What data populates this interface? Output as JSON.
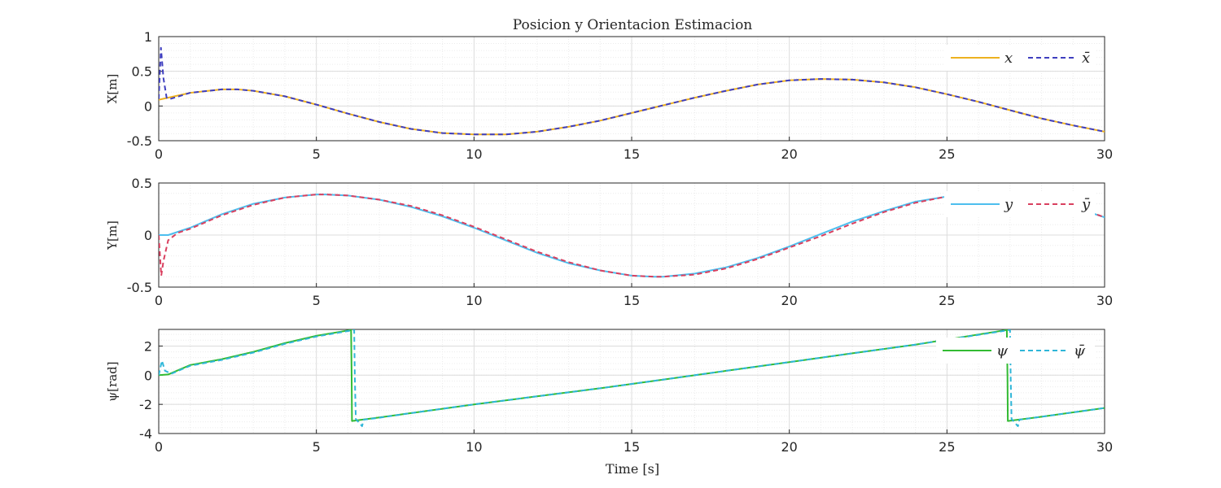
{
  "figure_title": "Posicion y Orientacion Estimacion",
  "x_axis_label": "Time [s]",
  "chart_data": [
    {
      "type": "line",
      "ylabel": "X[m]",
      "xlim": [
        0,
        30
      ],
      "ylim": [
        -0.5,
        1
      ],
      "xticks": [
        "0",
        "5",
        "10",
        "15",
        "20",
        "25",
        "30"
      ],
      "yticks": [
        "1",
        "0.5",
        "0",
        "-0.5"
      ],
      "ytick_values": [
        1,
        0.5,
        0,
        -0.5
      ],
      "grid": true,
      "legend_position": "top-right",
      "series": [
        {
          "name": "x",
          "color": "#EDB120",
          "style": "solid",
          "x": [
            0,
            1,
            2,
            2.5,
            3,
            4,
            5,
            6,
            7,
            8,
            9,
            10,
            10.5,
            11,
            12,
            13,
            14,
            15,
            16,
            17,
            18,
            19,
            20,
            21,
            22,
            23,
            24,
            25,
            26,
            27,
            28,
            29,
            30
          ],
          "y": [
            0.09,
            0.19,
            0.24,
            0.24,
            0.22,
            0.14,
            0.02,
            -0.11,
            -0.23,
            -0.33,
            -0.39,
            -0.41,
            -0.41,
            -0.41,
            -0.37,
            -0.3,
            -0.21,
            -0.1,
            0.01,
            0.12,
            0.22,
            0.31,
            0.37,
            0.39,
            0.38,
            0.34,
            0.27,
            0.17,
            0.06,
            -0.06,
            -0.18,
            -0.28,
            -0.37
          ]
        },
        {
          "name": "x̄",
          "color": "#3F3FBF",
          "style": "dashed",
          "x": [
            0,
            0.07,
            0.15,
            0.25,
            0.35,
            1,
            2,
            2.5,
            3,
            4,
            5,
            6,
            7,
            8,
            9,
            10,
            10.5,
            11,
            12,
            13,
            14,
            15,
            16,
            17,
            18,
            19,
            20,
            21,
            22,
            23,
            24,
            25,
            26,
            27,
            28,
            29,
            30
          ],
          "y": [
            0.1,
            0.84,
            0.4,
            0.12,
            0.1,
            0.19,
            0.24,
            0.24,
            0.22,
            0.14,
            0.02,
            -0.11,
            -0.23,
            -0.33,
            -0.39,
            -0.41,
            -0.41,
            -0.41,
            -0.37,
            -0.3,
            -0.21,
            -0.1,
            0.01,
            0.12,
            0.22,
            0.31,
            0.37,
            0.39,
            0.38,
            0.34,
            0.27,
            0.17,
            0.06,
            -0.06,
            -0.18,
            -0.28,
            -0.37
          ]
        }
      ]
    },
    {
      "type": "line",
      "ylabel": "Y[m]",
      "xlim": [
        0,
        30
      ],
      "ylim": [
        -0.5,
        0.5
      ],
      "xticks": [
        "0",
        "5",
        "10",
        "15",
        "20",
        "25",
        "30"
      ],
      "yticks": [
        "0.5",
        "0",
        "-0.5"
      ],
      "ytick_values": [
        0.5,
        0,
        -0.5
      ],
      "grid": true,
      "legend_position": "top-right",
      "series": [
        {
          "name": "y",
          "color": "#4DBEEE",
          "style": "solid",
          "x": [
            0,
            0.3,
            1,
            2,
            3,
            4,
            5,
            5.3,
            6,
            7,
            8,
            9,
            10,
            11,
            12,
            13,
            14,
            15,
            15.7,
            16,
            17,
            18,
            19,
            20,
            21,
            22,
            23,
            24,
            25,
            26,
            27,
            28,
            29,
            30
          ],
          "y": [
            0.0,
            0.0,
            0.07,
            0.2,
            0.3,
            0.36,
            0.39,
            0.39,
            0.38,
            0.34,
            0.27,
            0.18,
            0.07,
            -0.05,
            -0.17,
            -0.27,
            -0.34,
            -0.39,
            -0.4,
            -0.4,
            -0.37,
            -0.31,
            -0.22,
            -0.11,
            0.01,
            0.13,
            0.23,
            0.32,
            0.37,
            0.39,
            0.38,
            0.34,
            0.27,
            0.17
          ]
        },
        {
          "name": "ȳ",
          "color": "#D9405F",
          "style": "dashed",
          "x": [
            0,
            0.08,
            0.15,
            0.3,
            0.6,
            1,
            2,
            3,
            4,
            5,
            5.3,
            6,
            7,
            8,
            9,
            10,
            11,
            12,
            13,
            14,
            15,
            15.7,
            16,
            17,
            18,
            19,
            20,
            21,
            22,
            23,
            24,
            25,
            26,
            27,
            28,
            29,
            30
          ],
          "y": [
            0.0,
            -0.39,
            -0.25,
            -0.05,
            0.02,
            0.06,
            0.19,
            0.29,
            0.36,
            0.39,
            0.39,
            0.38,
            0.34,
            0.28,
            0.19,
            0.08,
            -0.04,
            -0.16,
            -0.26,
            -0.34,
            -0.39,
            -0.4,
            -0.4,
            -0.38,
            -0.32,
            -0.23,
            -0.12,
            -0.01,
            0.11,
            0.22,
            0.31,
            0.37,
            0.39,
            0.39,
            0.35,
            0.28,
            0.17
          ]
        }
      ]
    },
    {
      "type": "line",
      "ylabel": "ψ[rad]",
      "xlim": [
        0,
        30
      ],
      "ylim": [
        -4,
        3.1416
      ],
      "xticks": [
        "0",
        "5",
        "10",
        "15",
        "20",
        "25",
        "30"
      ],
      "yticks": [
        "2",
        "0",
        "-2",
        "-4"
      ],
      "ytick_values": [
        2,
        0,
        -2,
        -4
      ],
      "grid": true,
      "legend_position": "top-right",
      "series": [
        {
          "name": "ψ",
          "color": "#33BB33",
          "style": "solid",
          "x": [
            0,
            0.3,
            1,
            2,
            3,
            4,
            5,
            6.1,
            6.12,
            6.13,
            7,
            8,
            10,
            12,
            14,
            16,
            18,
            20,
            22,
            24,
            26.9,
            26.92,
            26.93,
            28,
            30
          ],
          "y": [
            0.0,
            0.05,
            0.7,
            1.1,
            1.6,
            2.2,
            2.7,
            3.1,
            -0.1,
            -3.14,
            -2.9,
            -2.6,
            -2.0,
            -1.45,
            -0.9,
            -0.3,
            0.3,
            0.9,
            1.5,
            2.1,
            3.1,
            -0.1,
            -3.14,
            -2.85,
            -2.25
          ]
        },
        {
          "name": "ψ̄",
          "color": "#2FB6D8",
          "style": "dashed",
          "x": [
            0,
            0.1,
            0.2,
            0.4,
            1,
            2,
            3,
            4,
            5,
            6.2,
            6.22,
            6.25,
            6.45,
            6.5,
            7,
            8,
            10,
            12,
            14,
            16,
            18,
            20,
            22,
            24,
            27.0,
            27.02,
            27.05,
            27.25,
            27.3,
            28,
            30
          ],
          "y": [
            0.0,
            1.0,
            0.3,
            0.1,
            0.65,
            1.05,
            1.55,
            2.15,
            2.65,
            3.1,
            -0.1,
            -3.0,
            -3.5,
            -3.05,
            -2.92,
            -2.6,
            -2.0,
            -1.45,
            -0.9,
            -0.3,
            0.3,
            0.9,
            1.5,
            2.1,
            3.1,
            -0.1,
            -3.0,
            -3.5,
            -3.05,
            -2.85,
            -2.25
          ]
        }
      ]
    }
  ]
}
